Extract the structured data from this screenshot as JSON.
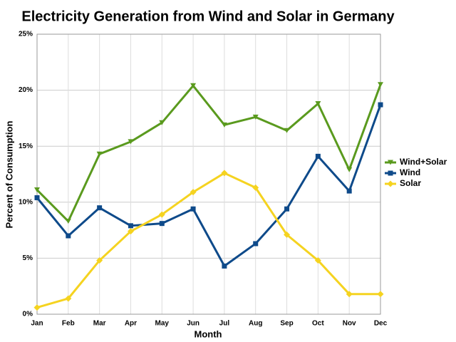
{
  "chart_data": {
    "type": "line",
    "title": "Electricity Generation from Wind and Solar in Germany",
    "x_label": "Month",
    "y_label": "Percent of Consumption",
    "categories": [
      "Jan",
      "Feb",
      "Mar",
      "Apr",
      "May",
      "Jun",
      "Jul",
      "Aug",
      "Sep",
      "Oct",
      "Nov",
      "Dec"
    ],
    "series": [
      {
        "name": "Wind+Solar",
        "color": "#5a9a1e",
        "marker": "triangle-down",
        "values": [
          11.1,
          8.3,
          14.3,
          15.4,
          17.1,
          20.4,
          16.9,
          17.6,
          16.4,
          18.8,
          12.9,
          20.5
        ]
      },
      {
        "name": "Wind",
        "color": "#0e4a8a",
        "marker": "square",
        "values": [
          10.4,
          7.0,
          9.5,
          7.9,
          8.1,
          9.4,
          4.3,
          6.3,
          9.4,
          14.1,
          11.0,
          18.7
        ]
      },
      {
        "name": "Solar",
        "color": "#f5d320",
        "marker": "diamond",
        "values": [
          0.6,
          1.4,
          4.8,
          7.4,
          8.9,
          10.9,
          12.6,
          11.3,
          7.1,
          4.8,
          1.8,
          1.8
        ]
      }
    ],
    "ylim": [
      0,
      25
    ],
    "yticks": [
      {
        "value": 0,
        "label": "0%"
      },
      {
        "value": 5,
        "label": "5%"
      },
      {
        "value": 10,
        "label": "10%"
      },
      {
        "value": 15,
        "label": "15%"
      },
      {
        "value": 20,
        "label": "20%"
      },
      {
        "value": 25,
        "label": "25%"
      }
    ],
    "grid": true,
    "legend": "right"
  }
}
